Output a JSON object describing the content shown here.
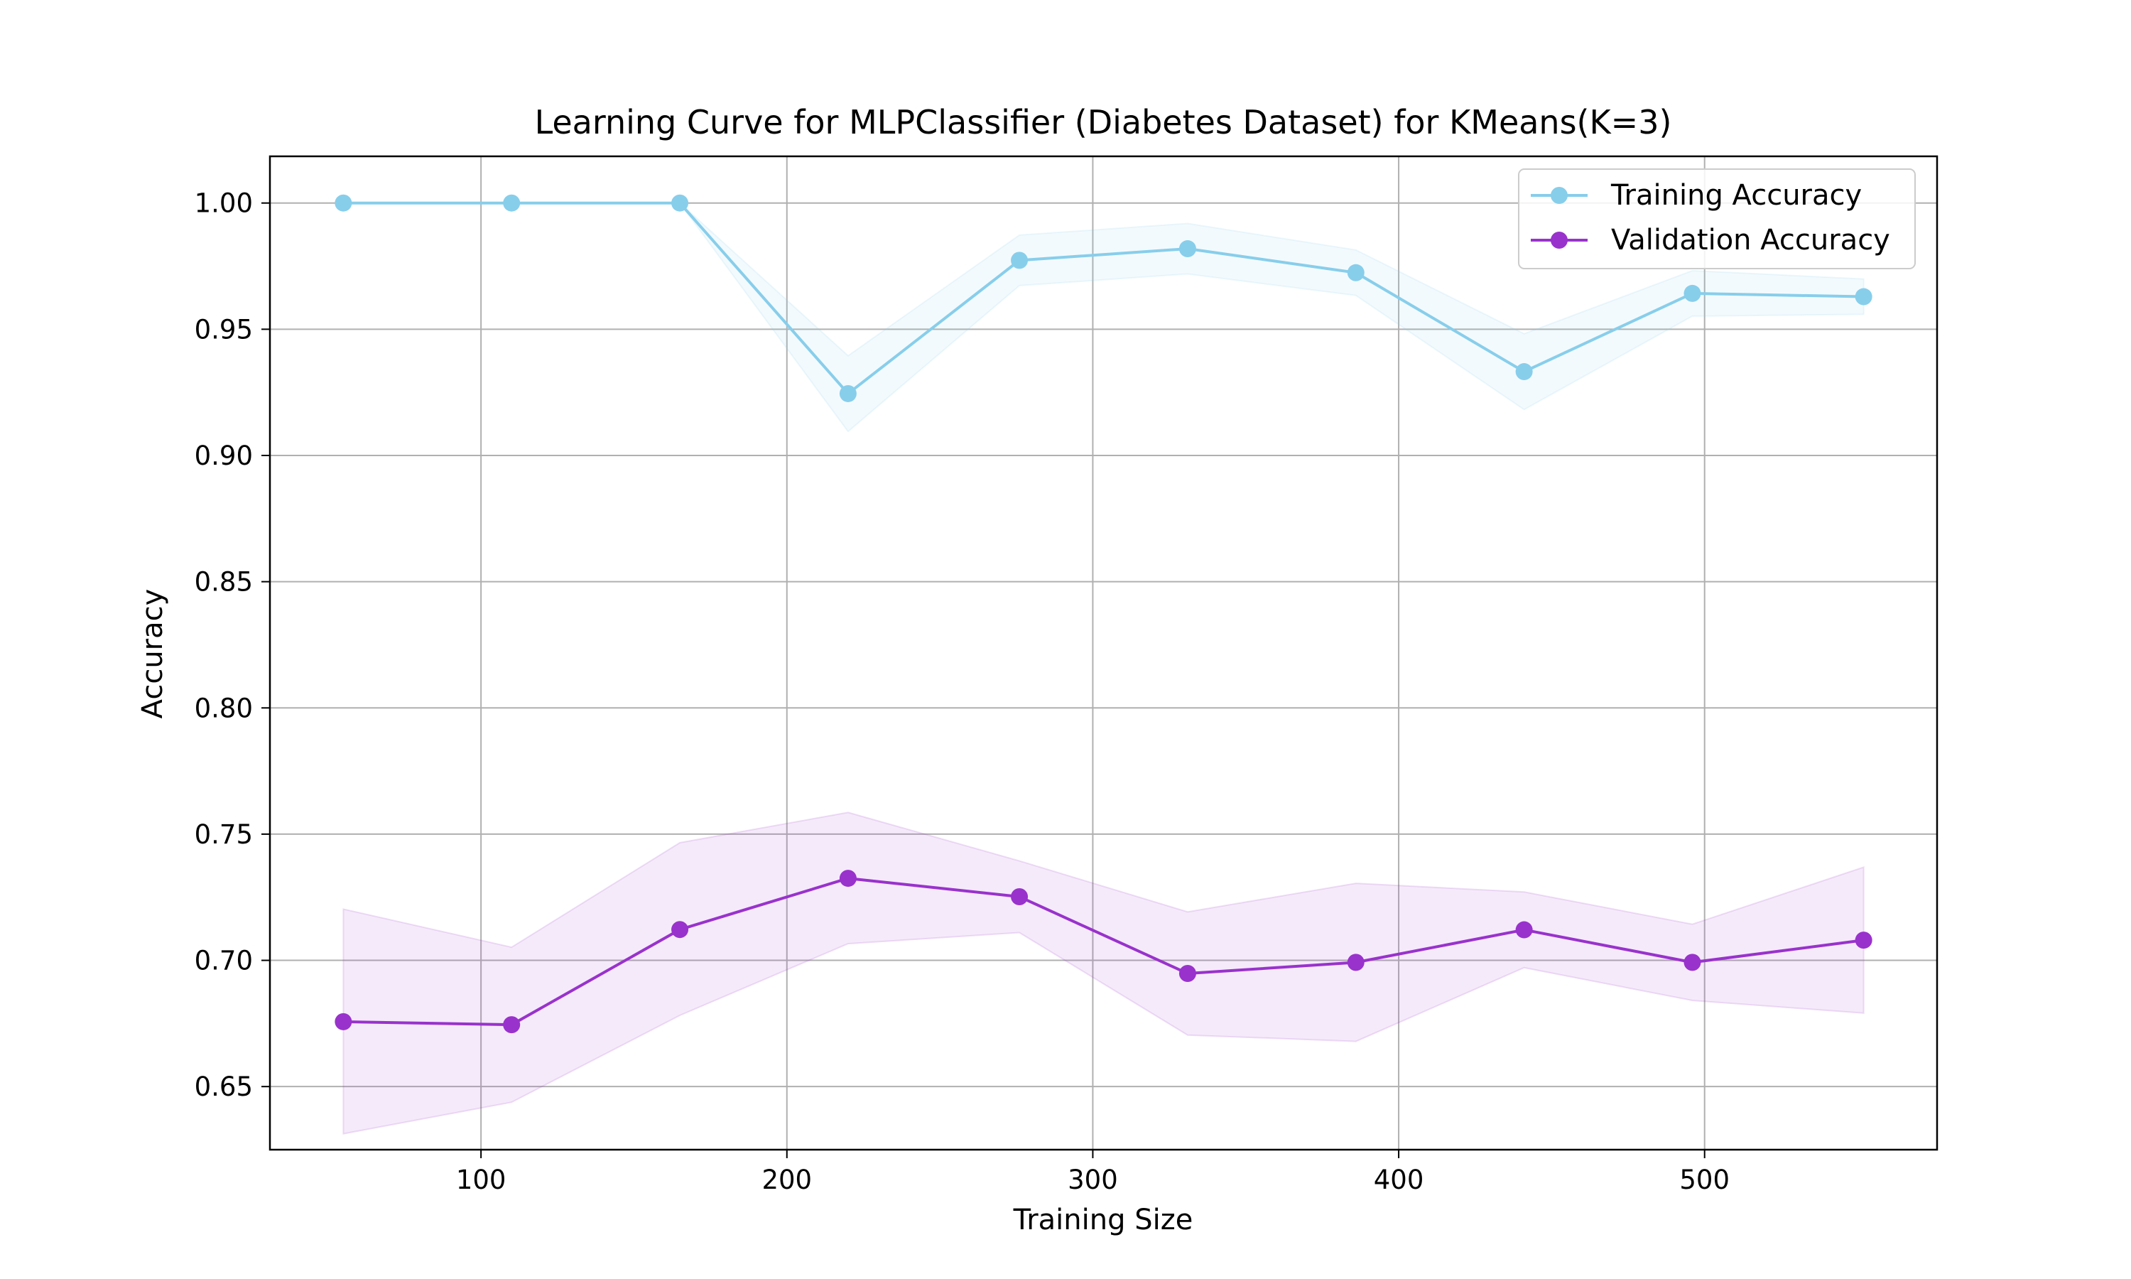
{
  "chart_data": {
    "type": "line",
    "title": "Learning Curve for MLPClassifier (Diabetes Dataset) for KMeans(K=3)",
    "xlabel": "Training Size",
    "ylabel": "Accuracy",
    "xlim": [
      31,
      576
    ],
    "ylim": [
      0.625,
      1.0185
    ],
    "x_ticks": [
      100,
      200,
      300,
      400,
      500
    ],
    "y_ticks": [
      0.65,
      0.7,
      0.75,
      0.8,
      0.85,
      0.9,
      0.95,
      1.0
    ],
    "x_tick_labels": [
      "100",
      "200",
      "300",
      "400",
      "500"
    ],
    "y_tick_labels": [
      "0.65",
      "0.70",
      "0.75",
      "0.80",
      "0.85",
      "0.90",
      "0.95",
      "1.00"
    ],
    "grid": true,
    "legend_position": "top-right",
    "x": [
      55,
      110,
      165,
      220,
      276,
      331,
      386,
      441,
      496,
      552
    ],
    "series": [
      {
        "name": "Training Accuracy",
        "color": "#87CEEB",
        "values": [
          1.0,
          1.0,
          1.0,
          0.9245,
          0.9773,
          0.9819,
          0.9724,
          0.9332,
          0.9642,
          0.9629
        ],
        "band_upper": [
          1.0,
          1.0,
          1.0,
          0.9395,
          0.9873,
          0.9919,
          0.9814,
          0.9482,
          0.9732,
          0.9699
        ],
        "band_lower": [
          1.0,
          1.0,
          1.0,
          0.9095,
          0.9673,
          0.9719,
          0.9634,
          0.9182,
          0.9552,
          0.9559
        ]
      },
      {
        "name": "Validation Accuracy",
        "color": "#9932CC",
        "values": [
          0.6757,
          0.6745,
          0.7122,
          0.7325,
          0.7252,
          0.6948,
          0.6992,
          0.7121,
          0.6992,
          0.708
        ],
        "band_upper": [
          0.7203,
          0.7052,
          0.7466,
          0.7586,
          0.7394,
          0.7192,
          0.7305,
          0.7271,
          0.7143,
          0.7369
        ],
        "band_lower": [
          0.6313,
          0.6438,
          0.6782,
          0.7066,
          0.711,
          0.6704,
          0.6679,
          0.6971,
          0.6841,
          0.6791
        ]
      }
    ]
  }
}
